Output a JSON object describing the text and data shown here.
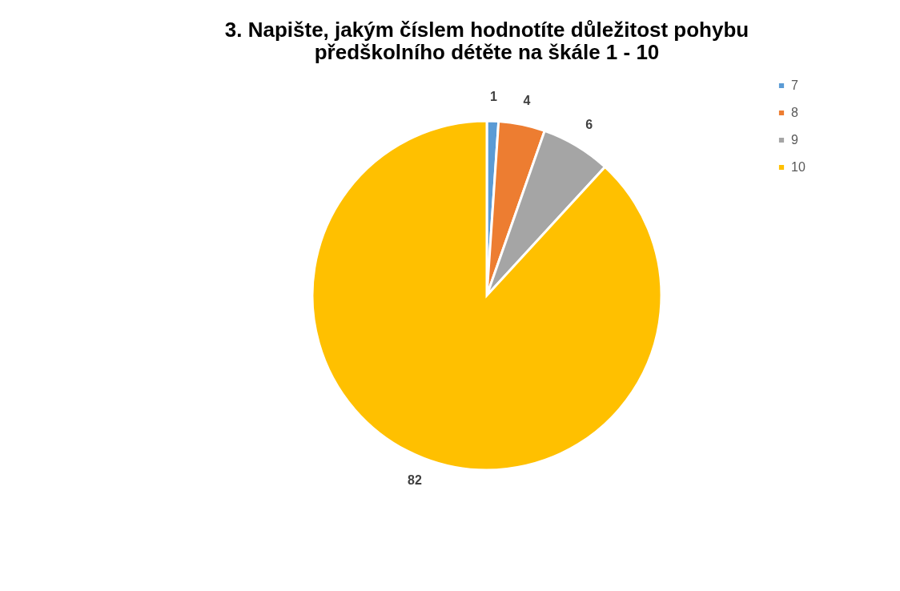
{
  "chart_data": {
    "type": "pie",
    "title": "3. Napište, jakým číslem hodnotíte důležitost pohybu předškolního détěte na škále 1 - 10",
    "categories": [
      "7",
      "8",
      "9",
      "10"
    ],
    "values": [
      1,
      4,
      6,
      82
    ],
    "colors": [
      "#5b9bd5",
      "#ed7d31",
      "#a5a5a5",
      "#ffc000"
    ],
    "data_labels": true,
    "legend": "right"
  }
}
